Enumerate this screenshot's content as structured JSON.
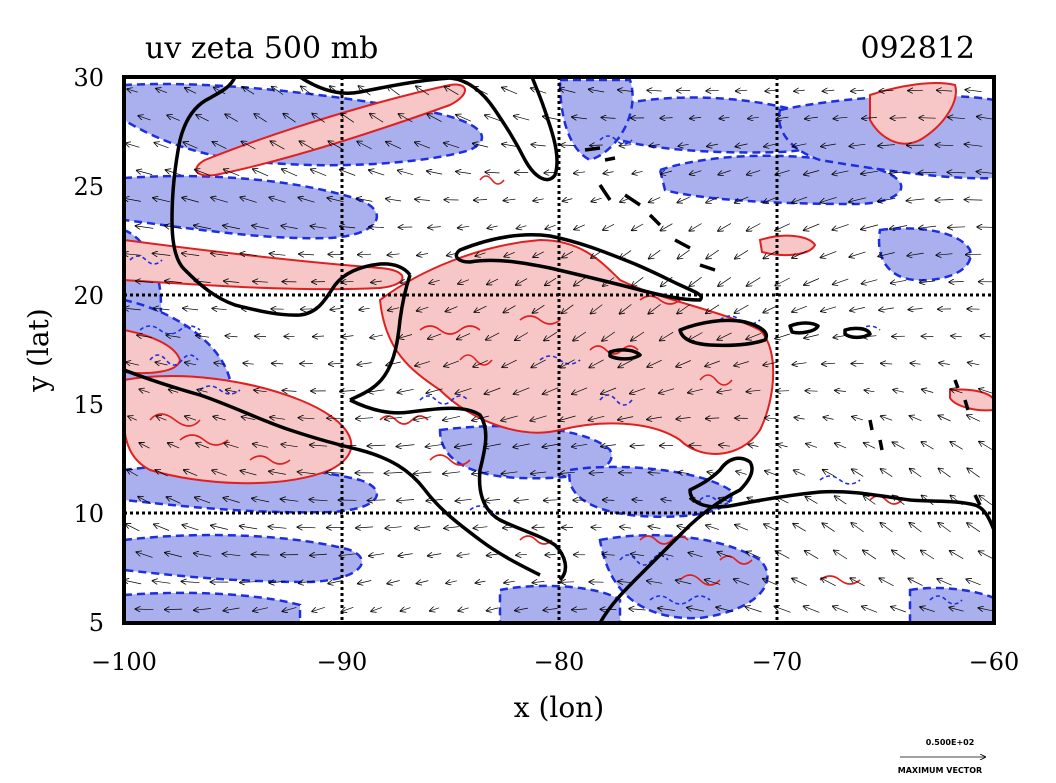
{
  "figure": {
    "title_left": "uv zeta 500 mb",
    "title_right": "092812",
    "xlabel": "x (lon)",
    "ylabel": "y (lat)",
    "x_ticks": [
      "−100",
      "−90",
      "−80",
      "−70",
      "−60"
    ],
    "y_ticks": [
      "30",
      "25",
      "20",
      "15",
      "10",
      "5"
    ],
    "vector_legend": {
      "value": "0.500E+02",
      "label": "MAXIMUM VECTOR"
    }
  },
  "map_extent": {
    "lon_range": [
      -100,
      -60
    ],
    "lat_range": [
      5,
      30
    ],
    "grid_lon": [
      -90,
      -80,
      -70
    ],
    "grid_lat": [
      10,
      20
    ]
  },
  "colors": {
    "positive_fill": "#f7c6c6",
    "positive_line": "#e02020",
    "negative_fill": "#aab0ee",
    "negative_line": "#1c2ee0",
    "coast": "#000000",
    "vector": "#000000"
  }
}
